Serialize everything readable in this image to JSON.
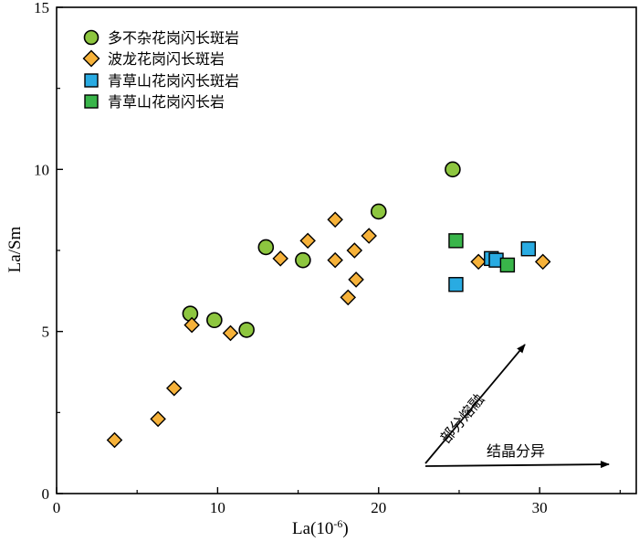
{
  "chart_data": {
    "type": "scatter",
    "xlabel": "La(10",
    "xlabel_sup": "-6",
    "xlabel_close": ")",
    "ylabel": "La/Sm",
    "xlim": [
      0,
      36
    ],
    "ylim": [
      0,
      15
    ],
    "x_ticks": [
      0,
      10,
      20,
      30
    ],
    "y_ticks": [
      0,
      5,
      10,
      15
    ],
    "grid": false,
    "legend_position": "top-left",
    "series": [
      {
        "name": "多不杂花岗闪长斑岩",
        "marker": "circle",
        "color": "#8dc63f",
        "points": [
          [
            8.3,
            5.55
          ],
          [
            9.8,
            5.35
          ],
          [
            11.8,
            5.05
          ],
          [
            13.0,
            7.6
          ],
          [
            15.3,
            7.2
          ],
          [
            20.0,
            8.7
          ],
          [
            24.6,
            10.0
          ]
        ]
      },
      {
        "name": "波龙花岗闪长斑岩",
        "marker": "diamond",
        "color": "#f6b23a",
        "points": [
          [
            3.6,
            1.65
          ],
          [
            6.3,
            2.3
          ],
          [
            7.3,
            3.25
          ],
          [
            8.4,
            5.2
          ],
          [
            10.8,
            4.95
          ],
          [
            13.9,
            7.25
          ],
          [
            15.6,
            7.8
          ],
          [
            17.3,
            8.45
          ],
          [
            17.3,
            7.2
          ],
          [
            18.1,
            6.05
          ],
          [
            18.5,
            7.5
          ],
          [
            18.6,
            6.6
          ],
          [
            19.4,
            7.95
          ],
          [
            26.2,
            7.15
          ],
          [
            30.2,
            7.15
          ]
        ]
      },
      {
        "name": "青草山花岗闪长斑岩",
        "marker": "square",
        "color": "#29abe2",
        "points": [
          [
            24.8,
            6.45
          ],
          [
            27.0,
            7.25
          ],
          [
            27.3,
            7.2
          ],
          [
            29.3,
            7.55
          ]
        ]
      },
      {
        "name": "青草山花岗闪长岩",
        "marker": "square",
        "color": "#39b54a",
        "points": [
          [
            24.8,
            7.8
          ],
          [
            28.0,
            7.05
          ]
        ]
      }
    ],
    "annotations": [
      {
        "text": "部分熔融",
        "kind": "arrow"
      },
      {
        "text": "结晶分异",
        "kind": "arrow"
      }
    ]
  }
}
